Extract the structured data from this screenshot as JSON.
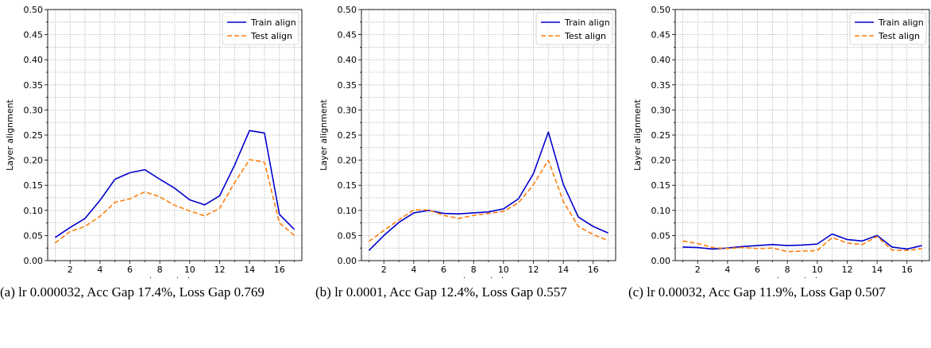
{
  "chart_data": [
    {
      "type": "line",
      "xlabel": "Layer index",
      "ylabel": "Layer alignment",
      "ylim": [
        0,
        0.5
      ],
      "xlim": [
        0.5,
        17.5
      ],
      "xticks": [
        "2",
        "4",
        "6",
        "8",
        "10",
        "12",
        "14",
        "16"
      ],
      "yticks": [
        "0.00",
        "0.05",
        "0.10",
        "0.15",
        "0.20",
        "0.25",
        "0.30",
        "0.35",
        "0.40",
        "0.45",
        "0.50"
      ],
      "grid": true,
      "legend": "top-right",
      "x": [
        1,
        2,
        3,
        4,
        5,
        6,
        7,
        8,
        9,
        10,
        11,
        12,
        13,
        14,
        15,
        16,
        17
      ],
      "series": [
        {
          "name": "Train align",
          "color": "#0000cc",
          "dash": "solid",
          "values": [
            0.046,
            0.066,
            0.084,
            0.12,
            0.162,
            0.175,
            0.181,
            0.162,
            0.144,
            0.121,
            0.111,
            0.129,
            0.19,
            0.259,
            0.254,
            0.092,
            0.062
          ]
        },
        {
          "name": "Test align",
          "color": "#ff7f0e",
          "dash": "dashed",
          "values": [
            0.035,
            0.058,
            0.068,
            0.088,
            0.116,
            0.123,
            0.137,
            0.127,
            0.11,
            0.099,
            0.089,
            0.104,
            0.155,
            0.201,
            0.196,
            0.075,
            0.05
          ]
        }
      ]
    },
    {
      "type": "line",
      "xlabel": "Layer index",
      "ylabel": "Layer alignment",
      "ylim": [
        0,
        0.5
      ],
      "xlim": [
        0.5,
        17.5
      ],
      "xticks": [
        "2",
        "4",
        "6",
        "8",
        "10",
        "12",
        "14",
        "16"
      ],
      "yticks": [
        "0.00",
        "0.05",
        "0.10",
        "0.15",
        "0.20",
        "0.25",
        "0.30",
        "0.35",
        "0.40",
        "0.45",
        "0.50"
      ],
      "grid": true,
      "legend": "top-right",
      "x": [
        1,
        2,
        3,
        4,
        5,
        6,
        7,
        8,
        9,
        10,
        11,
        12,
        13,
        14,
        15,
        16,
        17
      ],
      "series": [
        {
          "name": "Train align",
          "color": "#0000cc",
          "dash": "solid",
          "values": [
            0.02,
            0.05,
            0.076,
            0.095,
            0.1,
            0.094,
            0.093,
            0.095,
            0.097,
            0.103,
            0.123,
            0.173,
            0.256,
            0.152,
            0.087,
            0.068,
            0.055
          ]
        },
        {
          "name": "Test align",
          "color": "#ff7f0e",
          "dash": "dashed",
          "values": [
            0.038,
            0.06,
            0.081,
            0.101,
            0.101,
            0.09,
            0.084,
            0.09,
            0.094,
            0.098,
            0.115,
            0.151,
            0.2,
            0.118,
            0.068,
            0.052,
            0.04
          ]
        }
      ]
    },
    {
      "type": "line",
      "xlabel": "Layer index",
      "ylabel": "Layer alignment",
      "ylim": [
        0,
        0.5
      ],
      "xlim": [
        0.5,
        17.5
      ],
      "xticks": [
        "2",
        "4",
        "6",
        "8",
        "10",
        "12",
        "14",
        "16"
      ],
      "yticks": [
        "0.00",
        "0.05",
        "0.10",
        "0.15",
        "0.20",
        "0.25",
        "0.30",
        "0.35",
        "0.40",
        "0.45",
        "0.50"
      ],
      "grid": true,
      "legend": "top-right",
      "x": [
        1,
        2,
        3,
        4,
        5,
        6,
        7,
        8,
        9,
        10,
        11,
        12,
        13,
        14,
        15,
        16,
        17
      ],
      "series": [
        {
          "name": "Train align",
          "color": "#0000cc",
          "dash": "solid",
          "values": [
            0.027,
            0.026,
            0.023,
            0.025,
            0.028,
            0.03,
            0.032,
            0.03,
            0.031,
            0.033,
            0.053,
            0.042,
            0.039,
            0.05,
            0.027,
            0.023,
            0.03
          ]
        },
        {
          "name": "Test align",
          "color": "#ff7f0e",
          "dash": "dashed",
          "values": [
            0.039,
            0.034,
            0.026,
            0.024,
            0.026,
            0.024,
            0.025,
            0.018,
            0.019,
            0.02,
            0.046,
            0.035,
            0.032,
            0.048,
            0.021,
            0.02,
            0.024
          ]
        }
      ]
    }
  ],
  "captions": [
    "(a) lr 0.000032, Acc Gap 17.4%, Loss Gap 0.769",
    "(b) lr 0.0001, Acc Gap 12.4%, Loss Gap 0.557",
    "(c) lr 0.00032, Acc Gap 11.9%, Loss Gap 0.507"
  ]
}
